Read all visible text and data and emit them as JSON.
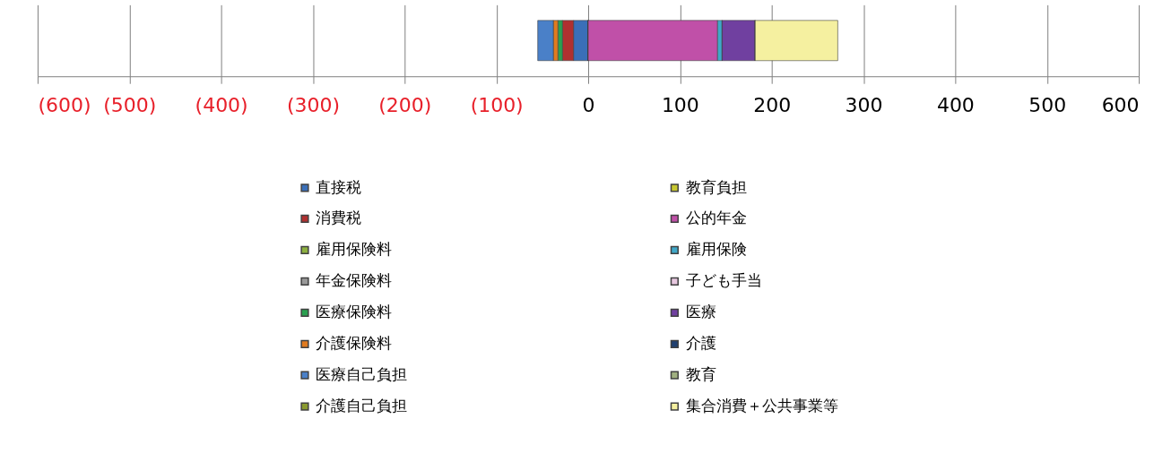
{
  "chart_data": {
    "type": "bar",
    "orientation": "horizontal",
    "stacked": true,
    "categories": [
      null
    ],
    "series": [
      {
        "name": "直接税",
        "color": "#3a6fb8",
        "values": [
          -16
        ]
      },
      {
        "name": "消費税",
        "color": "#b03030",
        "values": [
          -12
        ]
      },
      {
        "name": "雇用保険料",
        "color": "#8db040",
        "values": [
          0
        ]
      },
      {
        "name": "年金保険料",
        "color": "#9a9a9a",
        "values": [
          0
        ]
      },
      {
        "name": "医療保険料",
        "color": "#2aa050",
        "values": [
          -5
        ]
      },
      {
        "name": "介護保険料",
        "color": "#e07b20",
        "values": [
          -5
        ]
      },
      {
        "name": "医療自己負担",
        "color": "#4a80c8",
        "values": [
          -17
        ]
      },
      {
        "name": "介護自己負担",
        "color": "#8a9a30",
        "values": [
          0
        ]
      },
      {
        "name": "教育負担",
        "color": "#c8c830",
        "values": [
          0
        ]
      },
      {
        "name": "公的年金",
        "color": "#c050a8",
        "values": [
          141
        ]
      },
      {
        "name": "雇用保険",
        "color": "#40a8c8",
        "values": [
          5
        ]
      },
      {
        "name": "子ども手当",
        "color": "#e8c8e0",
        "values": [
          0
        ]
      },
      {
        "name": "医療",
        "color": "#7040a0",
        "values": [
          36
        ]
      },
      {
        "name": "介護",
        "color": "#204070",
        "values": [
          0
        ]
      },
      {
        "name": "教育",
        "color": "#a0b080",
        "values": [
          0
        ]
      },
      {
        "name": "集合消費＋公共事業等",
        "color": "#f5f0a0",
        "values": [
          90
        ]
      }
    ],
    "xlim": [
      -600,
      600
    ],
    "xticks": [
      {
        "value": -600,
        "label": "(600)"
      },
      {
        "value": -500,
        "label": "(500)"
      },
      {
        "value": -400,
        "label": "(400)"
      },
      {
        "value": -300,
        "label": "(300)"
      },
      {
        "value": -200,
        "label": "(200)"
      },
      {
        "value": -100,
        "label": "(100)"
      },
      0,
      100,
      200,
      300,
      400,
      500,
      600
    ],
    "grid": "x",
    "legend": "bottom"
  }
}
